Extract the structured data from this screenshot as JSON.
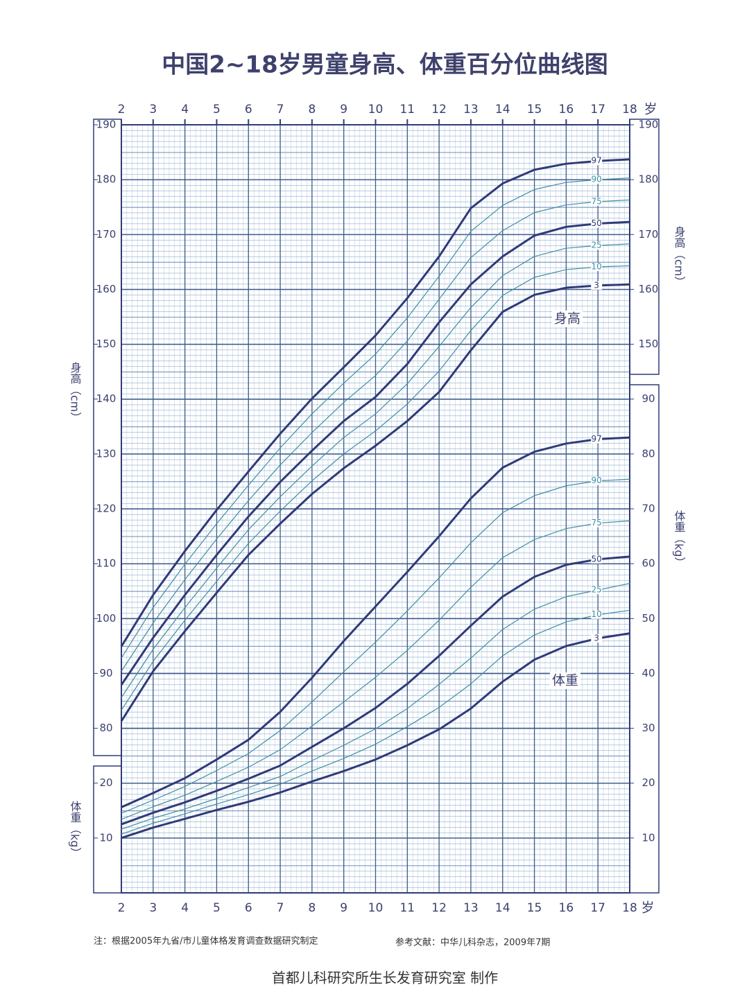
{
  "chart_data": {
    "type": "line",
    "title": "中国2~18岁男童身高、体重百分位曲线图",
    "x": [
      2,
      3,
      4,
      5,
      6,
      7,
      8,
      9,
      10,
      11,
      12,
      13,
      14,
      15,
      16,
      17,
      18
    ],
    "x_unit": "岁",
    "xlim": [
      2,
      18
    ],
    "xticks": [
      2,
      3,
      4,
      5,
      6,
      7,
      8,
      9,
      10,
      11,
      12,
      13,
      14,
      15,
      16,
      17,
      18
    ],
    "ylabel": "身高（cm）",
    "ylim": [
      50,
      190
    ],
    "yticks": [
      80,
      90,
      100,
      110,
      120,
      130,
      140,
      150,
      160,
      170,
      180,
      190
    ],
    "y2label": "体重（kg）",
    "y2lim": [
      0,
      140
    ],
    "y2ticks": [
      10,
      20,
      30,
      40,
      50,
      60,
      70,
      80,
      90
    ],
    "grid": true,
    "annotations": [
      "身高",
      "体重"
    ],
    "series": [
      {
        "name": "3",
        "color": "#2f3a78",
        "line_width": 3,
        "values": [
          81.3,
          90.4,
          97.7,
          104.7,
          111.6,
          117.3,
          122.7,
          127.4,
          131.5,
          136.0,
          141.3,
          148.9,
          155.9,
          159.0,
          160.3,
          160.7,
          160.9
        ]
      },
      {
        "name": "10",
        "color": "#3f8ea3",
        "line_width": 1.2,
        "values": [
          83.3,
          92.2,
          99.7,
          106.8,
          113.7,
          119.6,
          125.1,
          130.0,
          134.2,
          139.1,
          145.1,
          152.5,
          158.9,
          162.2,
          163.6,
          164.1,
          164.3
        ]
      },
      {
        "name": "25",
        "color": "#3f8ea3",
        "line_width": 1.2,
        "values": [
          85.6,
          94.4,
          102.0,
          109.2,
          116.2,
          122.2,
          127.8,
          133.0,
          137.3,
          142.8,
          149.6,
          156.7,
          162.5,
          166.0,
          167.5,
          168.0,
          168.3
        ]
      },
      {
        "name": "50",
        "color": "#2f3a78",
        "line_width": 3,
        "values": [
          87.9,
          96.5,
          104.3,
          111.6,
          118.6,
          124.9,
          130.6,
          136.0,
          140.4,
          146.4,
          154.0,
          160.9,
          166.0,
          169.8,
          171.4,
          172.0,
          172.3
        ]
      },
      {
        "name": "75",
        "color": "#3f8ea3",
        "line_width": 1.2,
        "values": [
          90.4,
          99.2,
          107.1,
          114.5,
          121.5,
          128.0,
          133.9,
          139.4,
          144.3,
          150.6,
          158.2,
          165.8,
          170.7,
          174.0,
          175.4,
          176.0,
          176.3
        ]
      },
      {
        "name": "90",
        "color": "#3f8ea3",
        "line_width": 1.2,
        "values": [
          92.8,
          102.0,
          109.9,
          117.3,
          124.3,
          131.1,
          137.3,
          142.9,
          148.2,
          154.8,
          162.4,
          170.6,
          175.3,
          178.2,
          179.5,
          180.0,
          180.3
        ]
      },
      {
        "name": "97",
        "color": "#2f3a78",
        "line_width": 3,
        "values": [
          94.9,
          104.3,
          112.3,
          119.8,
          126.8,
          133.7,
          140.1,
          145.8,
          151.6,
          158.4,
          166.0,
          174.8,
          179.3,
          181.8,
          182.9,
          183.4,
          183.7
        ]
      },
      {
        "name": "3",
        "color": "#2f3a78",
        "line_width": 3,
        "axis": "y2",
        "values": [
          10.0,
          11.9,
          13.5,
          15.1,
          16.6,
          18.3,
          20.3,
          22.2,
          24.3,
          26.9,
          29.8,
          33.6,
          38.5,
          42.5,
          45.0,
          46.4,
          47.3
        ]
      },
      {
        "name": "10",
        "color": "#3f8ea3",
        "line_width": 1.2,
        "axis": "y2",
        "values": [
          10.7,
          12.7,
          14.4,
          16.2,
          17.9,
          19.8,
          22.2,
          24.5,
          27.1,
          30.3,
          33.8,
          38.1,
          43.2,
          47.0,
          49.4,
          50.7,
          51.5
        ]
      },
      {
        "name": "25",
        "color": "#3f8ea3",
        "line_width": 1.2,
        "axis": "y2",
        "values": [
          11.6,
          13.6,
          15.3,
          17.2,
          19.2,
          21.2,
          24.1,
          26.9,
          29.9,
          33.6,
          38.0,
          42.8,
          48.0,
          51.7,
          54.0,
          55.2,
          56.4
        ]
      },
      {
        "name": "50",
        "color": "#2f3a78",
        "line_width": 3,
        "axis": "y2",
        "values": [
          12.5,
          14.6,
          16.5,
          18.6,
          20.8,
          23.2,
          26.6,
          30.0,
          33.7,
          38.1,
          43.2,
          48.7,
          54.0,
          57.6,
          59.8,
          60.8,
          61.3
        ]
      },
      {
        "name": "75",
        "color": "#3f8ea3",
        "line_width": 1.2,
        "axis": "y2",
        "values": [
          13.4,
          15.7,
          17.8,
          20.3,
          22.9,
          26.1,
          30.4,
          34.8,
          39.3,
          44.2,
          49.7,
          55.7,
          61.1,
          64.4,
          66.4,
          67.4,
          67.8
        ]
      },
      {
        "name": "90",
        "color": "#3f8ea3",
        "line_width": 1.2,
        "axis": "y2",
        "values": [
          14.5,
          16.9,
          19.4,
          22.3,
          25.4,
          29.6,
          34.8,
          40.3,
          45.7,
          51.4,
          57.4,
          63.8,
          69.3,
          72.4,
          74.2,
          75.1,
          75.4
        ]
      },
      {
        "name": "97",
        "color": "#2f3a78",
        "line_width": 3,
        "axis": "y2",
        "values": [
          15.6,
          18.2,
          20.9,
          24.3,
          27.9,
          33.0,
          39.2,
          45.9,
          52.2,
          58.5,
          65.0,
          71.9,
          77.5,
          80.4,
          81.9,
          82.7,
          83.0
        ]
      }
    ],
    "note": "注：根据2005年九省/市儿童体格发育调查数据研究制定",
    "reference": "参考文献：中华儿科杂志，2009年7期",
    "credit": "首都儿科研究所生长发育研究室 制作"
  }
}
